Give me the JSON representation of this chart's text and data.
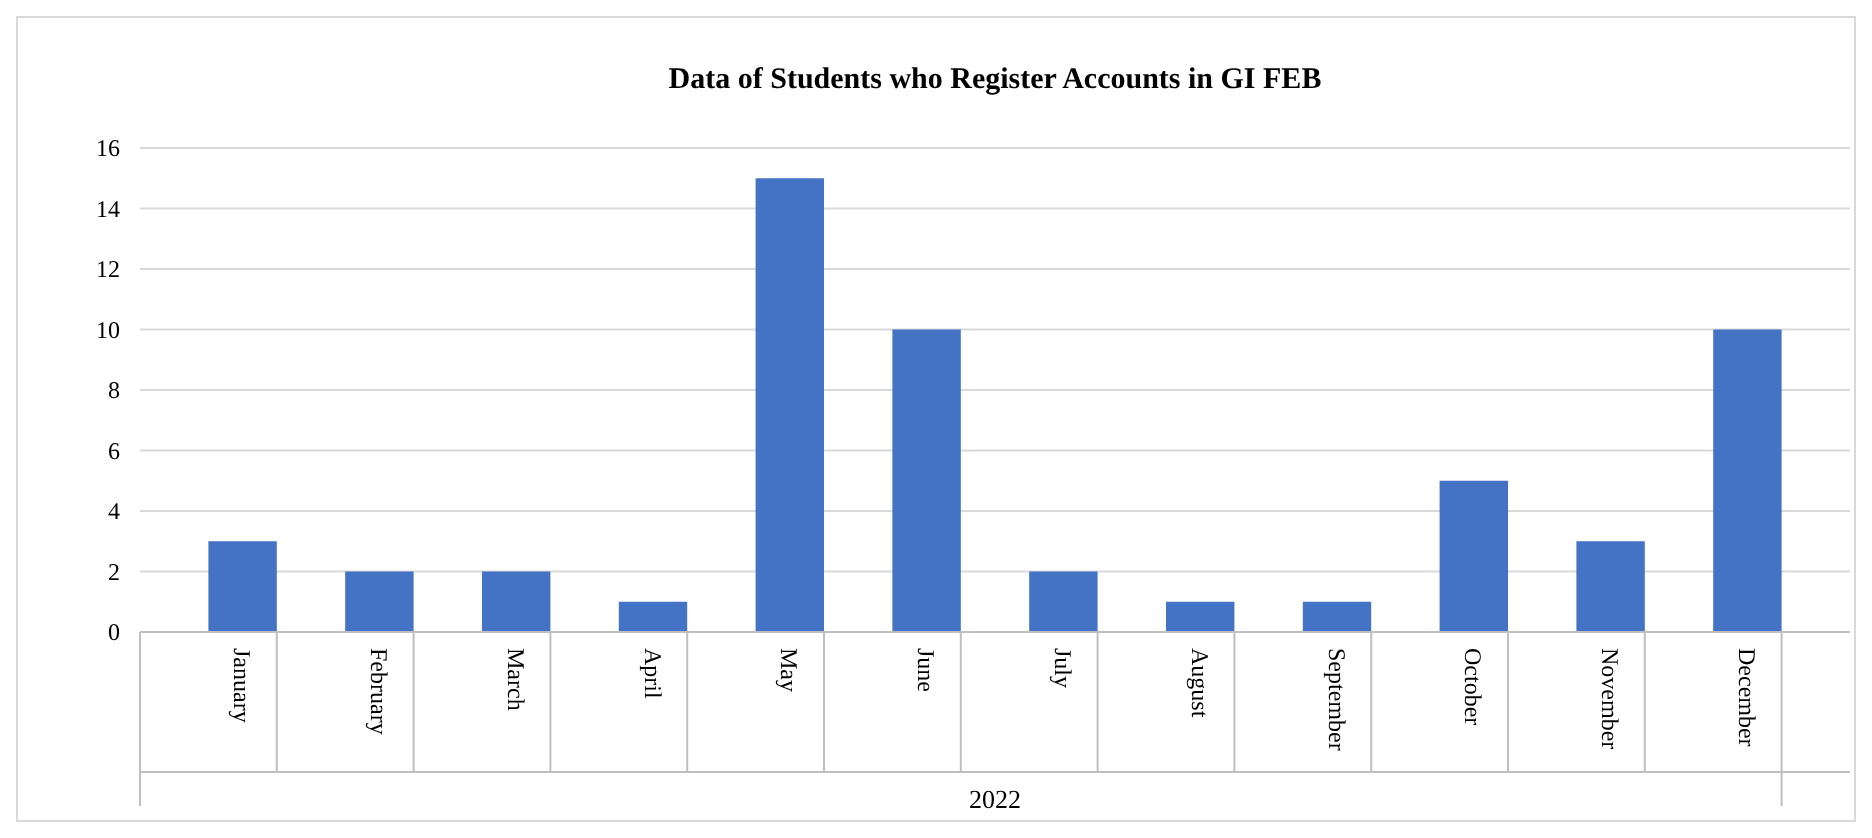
{
  "chart_data": {
    "type": "bar",
    "title": "Data of Students who Register Accounts in GI FEB",
    "xlabel": "2022",
    "categories": [
      "January",
      "February",
      "March",
      "April",
      "May",
      "June",
      "July",
      "August",
      "September",
      "October",
      "November",
      "December"
    ],
    "values": [
      3,
      2,
      2,
      1,
      15,
      10,
      2,
      1,
      1,
      5,
      3,
      10
    ],
    "color": "#4472c4",
    "ylim": [
      0,
      16
    ],
    "yticks": [
      0,
      2,
      4,
      6,
      8,
      10,
      12,
      14,
      16
    ],
    "grid": "y"
  }
}
